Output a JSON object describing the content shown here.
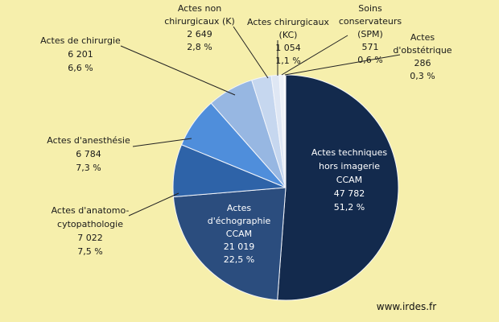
{
  "chart_data": {
    "type": "pie",
    "categories": [
      [
        "Actes techniques",
        "hors imagerie",
        "CCAM"
      ],
      [
        "Actes",
        "d'échographie",
        "CCAM"
      ],
      [
        "Actes d'anatomo-",
        "cytopathologie"
      ],
      [
        "Actes d'anesthésie"
      ],
      [
        "Actes de chirurgie"
      ],
      [
        "Actes non",
        "chirurgicaux (K)"
      ],
      [
        "Actes chirurgicaux",
        "(KC)"
      ],
      [
        "Soins",
        "conservateurs",
        "(SPM)"
      ],
      [
        "Actes",
        "d'obstétrique"
      ]
    ],
    "values": [
      47782,
      21019,
      7022,
      6784,
      6201,
      2649,
      1054,
      571,
      286
    ],
    "value_labels": [
      "47 782",
      "21 019",
      "7 022",
      "6 784",
      "6 201",
      "2 649",
      "1 054",
      "571",
      "286"
    ],
    "shares": [
      "51,2 %",
      "22,5 %",
      "7,5 %",
      "7,3 %",
      "6,6 %",
      "2,8 %",
      "1,1 %",
      "0,6 %",
      "0,3 %"
    ],
    "colors": [
      "#132a4d",
      "#2b4d7e",
      "#2e63a8",
      "#4f8edb",
      "#97b7e2",
      "#c6d7ef",
      "#dfe7f4",
      "#eef2f8",
      "#ffffff"
    ],
    "source": "www.irdes.fr"
  }
}
